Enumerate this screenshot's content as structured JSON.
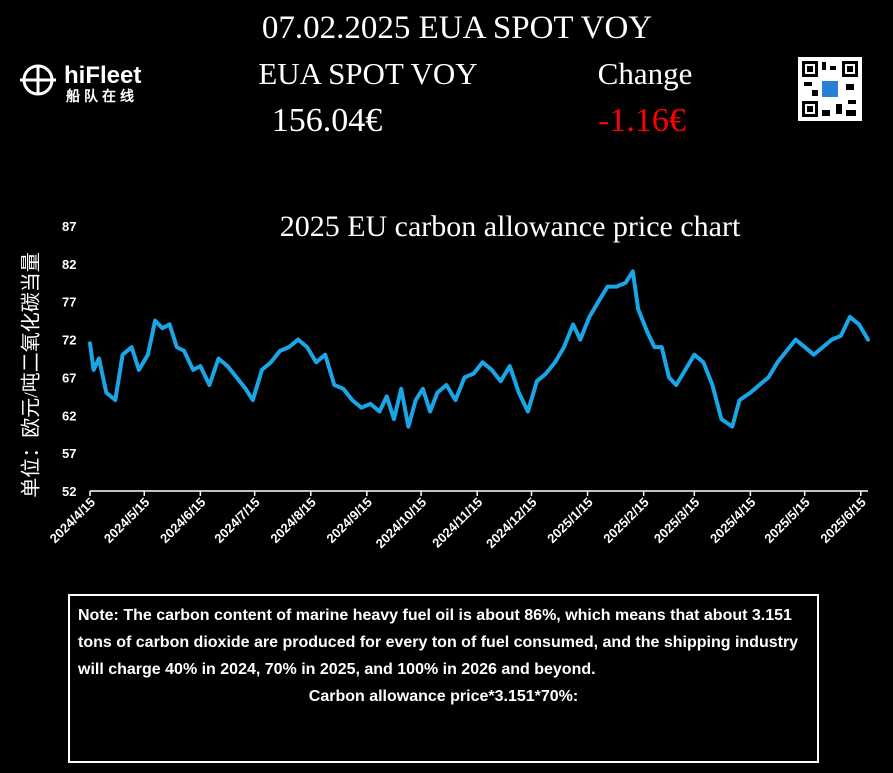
{
  "header": {
    "title": "07.02.2025 EUA SPOT VOY",
    "label": "EUA SPOT VOY",
    "change_label": "Change",
    "price": "156.04€",
    "change": "-1.16€"
  },
  "logo": {
    "name": "hiFleet",
    "subtitle": "船队在线"
  },
  "chart_data": {
    "type": "line",
    "title": "2025 EU carbon allowance price chart",
    "y_label": "单位：欧元/吨二氧化碳当量",
    "x": [
      "2024/4/15",
      "2024/4/17",
      "2024/4/20",
      "2024/4/24",
      "2024/4/29",
      "2024/5/3",
      "2024/5/8",
      "2024/5/12",
      "2024/5/17",
      "2024/5/21",
      "2024/5/25",
      "2024/5/29",
      "2024/6/2",
      "2024/6/6",
      "2024/6/11",
      "2024/6/15",
      "2024/6/20",
      "2024/6/25",
      "2024/6/30",
      "2024/7/5",
      "2024/7/10",
      "2024/7/14",
      "2024/7/19",
      "2024/7/24",
      "2024/7/29",
      "2024/8/3",
      "2024/8/8",
      "2024/8/13",
      "2024/8/18",
      "2024/8/23",
      "2024/8/28",
      "2024/9/2",
      "2024/9/7",
      "2024/9/12",
      "2024/9/17",
      "2024/9/22",
      "2024/9/26",
      "2024/9/30",
      "2024/10/4",
      "2024/10/8",
      "2024/10/12",
      "2024/10/16",
      "2024/10/20",
      "2024/10/24",
      "2024/10/29",
      "2024/11/3",
      "2024/11/8",
      "2024/11/13",
      "2024/11/18",
      "2024/11/23",
      "2024/11/28",
      "2024/12/3",
      "2024/12/8",
      "2024/12/13",
      "2024/12/18",
      "2024/12/23",
      "2024/12/28",
      "2025/1/2",
      "2025/1/7",
      "2025/1/11",
      "2025/1/16",
      "2025/1/21",
      "2025/1/26",
      "2025/1/31",
      "2025/2/5",
      "2025/2/9",
      "2025/2/12",
      "2025/2/17",
      "2025/2/21",
      "2025/2/25",
      "2025/3/1",
      "2025/3/5",
      "2025/3/10",
      "2025/3/15",
      "2025/3/20",
      "2025/3/25",
      "2025/3/30",
      "2025/4/5",
      "2025/4/9",
      "2025/4/15",
      "2025/4/20",
      "2025/4/25",
      "2025/4/30",
      "2025/5/5",
      "2025/5/10",
      "2025/5/15",
      "2025/5/20",
      "2025/5/25",
      "2025/5/30",
      "2025/6/4",
      "2025/6/9",
      "2025/6/14",
      "2025/6/19"
    ],
    "series": [
      {
        "color": "#1aa6e6",
        "values": [
          71.5,
          68,
          69.5,
          65,
          64,
          70,
          71,
          68,
          70,
          74.5,
          73.5,
          74,
          71,
          70.5,
          68,
          68.5,
          66,
          69.5,
          68.5,
          67,
          65.5,
          64,
          68,
          69,
          70.5,
          71,
          72,
          71,
          69,
          70,
          66,
          65.5,
          64,
          63,
          63.5,
          62.5,
          64.5,
          61.5,
          65.5,
          60.5,
          64,
          65.5,
          62.5,
          65,
          66,
          64,
          67,
          67.5,
          69,
          68,
          66.5,
          68.5,
          65,
          62.5,
          66.5,
          67.5,
          69,
          71,
          74,
          72,
          75,
          77,
          79,
          79,
          79.5,
          81,
          76,
          73,
          71,
          71,
          67,
          66,
          68,
          70,
          69,
          66,
          61.5,
          60.5,
          64,
          65,
          66,
          67,
          69,
          70.5,
          72,
          71,
          70,
          71,
          72,
          72.5,
          75,
          74,
          72
        ]
      }
    ],
    "xlim": [
      "2024/4/15",
      "2025/6/19"
    ],
    "xticks": [
      "2024/4/15",
      "2024/5/15",
      "2024/6/15",
      "2024/7/15",
      "2024/8/15",
      "2024/9/15",
      "2024/10/15",
      "2024/11/15",
      "2024/12/15",
      "2025/1/15",
      "2025/2/15",
      "2025/3/15",
      "2025/4/15",
      "2025/5/15",
      "2025/6/15"
    ],
    "ylim": [
      52,
      87
    ],
    "yticks": [
      52,
      57,
      62,
      67,
      72,
      77,
      82,
      87
    ]
  },
  "note": {
    "text": "Note: The carbon content of marine heavy fuel oil is about 86%, which means that about 3.151 tons of carbon dioxide are produced for every ton of fuel consumed, and the shipping industry will charge 40% in 2024, 70% in 2025, and 100% in 2026 and beyond.",
    "formula": "Carbon allowance price*3.151*70%:"
  }
}
